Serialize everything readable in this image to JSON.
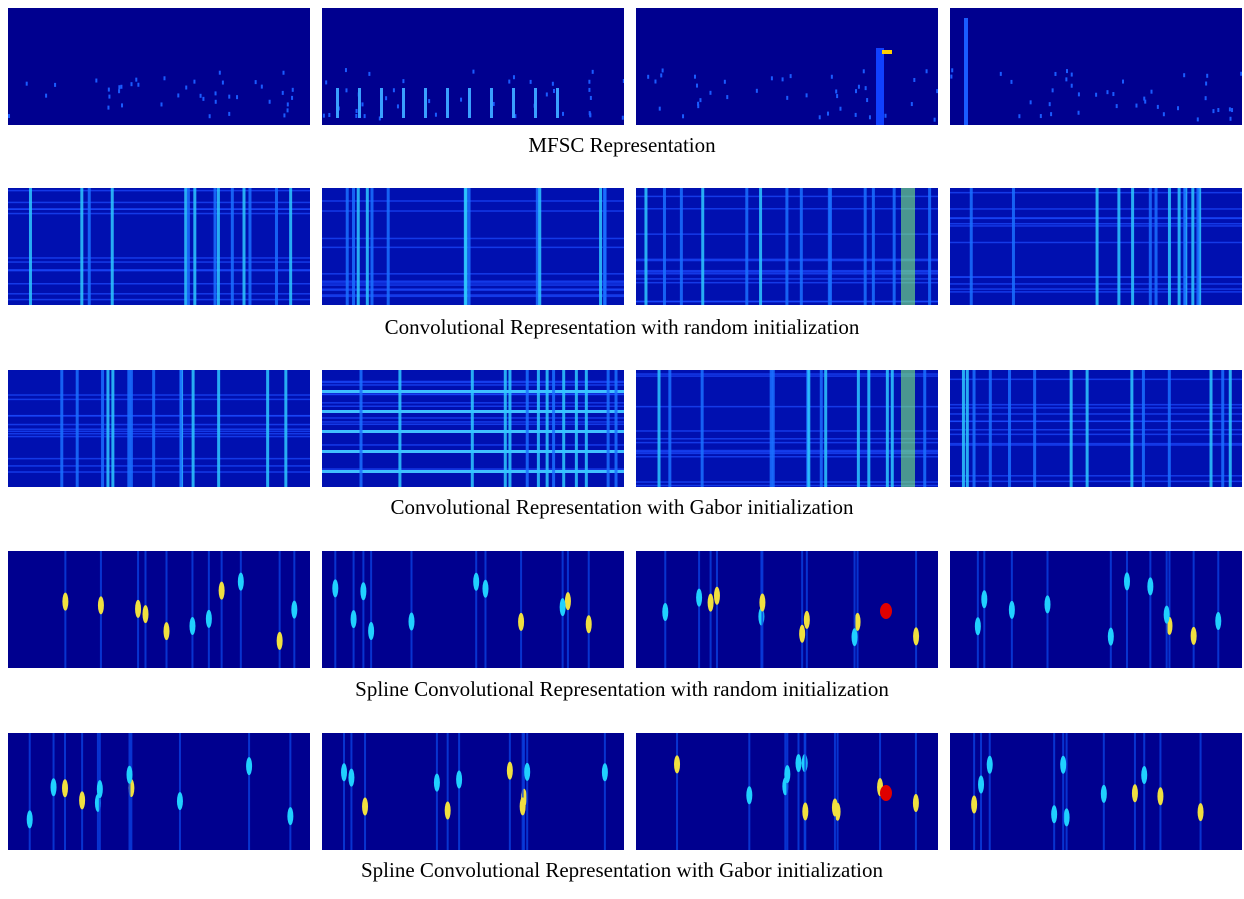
{
  "figure": {
    "rows": [
      {
        "caption": "MFSC Representation"
      },
      {
        "caption": "Convolutional Representation with random initialization"
      },
      {
        "caption": "Convolutional Representation with Gabor initialization"
      },
      {
        "caption": "Spline Convolutional Representation with random initialization"
      },
      {
        "caption": "Spline Convolutional Representation with Gabor initialization"
      }
    ]
  }
}
